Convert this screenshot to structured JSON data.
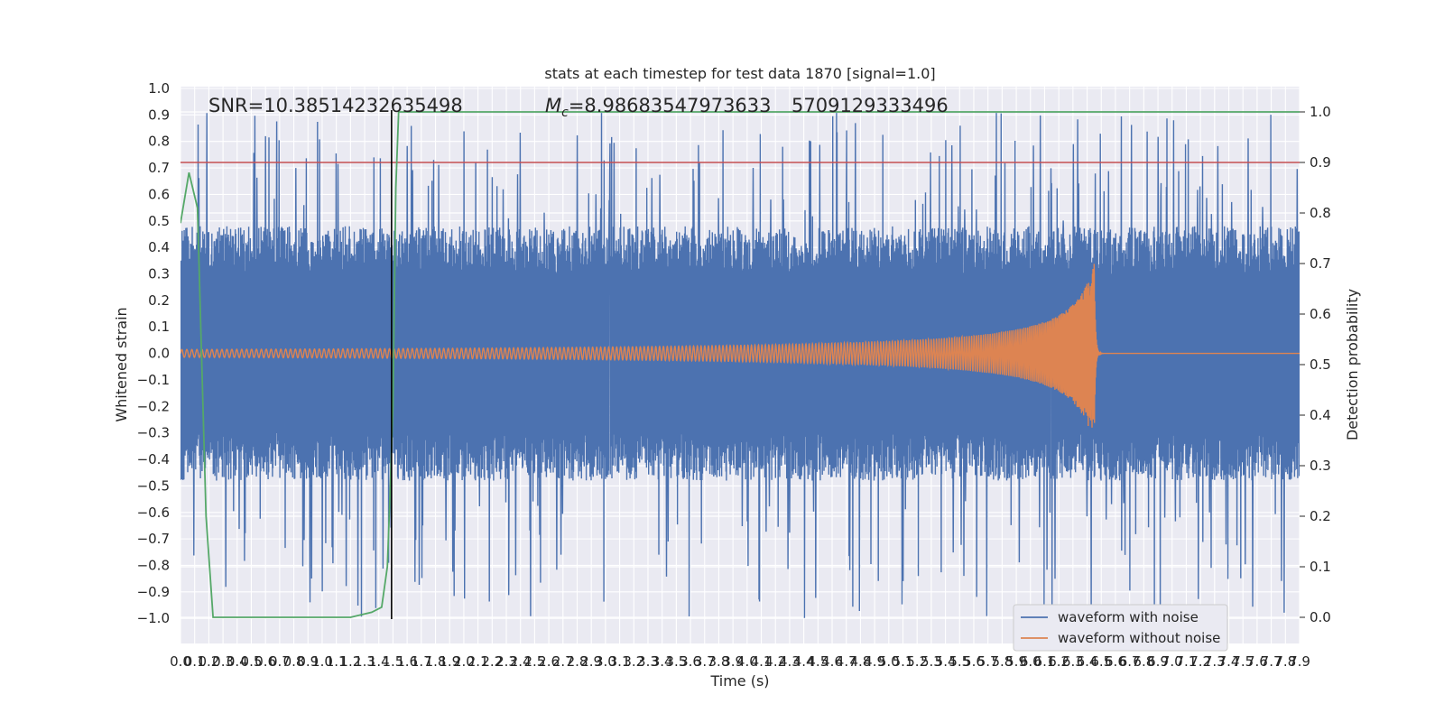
{
  "chart_data": {
    "type": "line",
    "title": "stats at each timestep for test data 1870 [signal=1.0]",
    "xlabel": "Time (s)",
    "ylabel_left": "Whitened strain",
    "ylabel_right": "Detection probability",
    "xlim": [
      0.0,
      7.9
    ],
    "ylim_left": [
      -1.09,
      1.0
    ],
    "ylim_right": [
      -0.05,
      1.045
    ],
    "x_ticks": [
      "0.0",
      "0.1",
      "0.2",
      "0.3",
      "0.4",
      "0.5",
      "0.6",
      "0.7",
      "0.8",
      "0.9",
      "1.0",
      "1.1",
      "1.2",
      "1.3",
      "1.4",
      "1.5",
      "1.6",
      "1.7",
      "1.8",
      "1.9",
      "2.0",
      "2.1",
      "2.2",
      "2.3",
      "2.4",
      "2.5",
      "2.6",
      "2.7",
      "2.8",
      "2.9",
      "3.0",
      "3.1",
      "3.2",
      "3.3",
      "3.4",
      "3.5",
      "3.6",
      "3.7",
      "3.8",
      "3.9",
      "4.0",
      "4.1",
      "4.2",
      "4.3",
      "4.4",
      "4.5",
      "4.6",
      "4.7",
      "4.8",
      "4.9",
      "5.0",
      "5.1",
      "5.2",
      "5.3",
      "5.4",
      "5.5",
      "5.6",
      "5.7",
      "5.8",
      "5.9",
      "6.0",
      "6.1",
      "6.2",
      "6.3",
      "6.4",
      "6.5",
      "6.6",
      "6.7",
      "6.8",
      "6.9",
      "7.0",
      "7.1",
      "7.2",
      "7.3",
      "7.4",
      "7.5",
      "7.6",
      "7.7",
      "7.8",
      "7.9"
    ],
    "y_ticks_left": [
      "1.0",
      "0.9",
      "0.8",
      "0.7",
      "0.6",
      "0.5",
      "0.4",
      "0.3",
      "0.2",
      "0.1",
      "0.0",
      "−0.1",
      "−0.2",
      "−0.3",
      "−0.4",
      "−0.5",
      "−0.6",
      "−0.7",
      "−0.8",
      "−0.9",
      "−1.0"
    ],
    "y_ticks_right": [
      "1.0",
      "0.9",
      "0.8",
      "0.7",
      "0.6",
      "0.5",
      "0.4",
      "0.3",
      "0.2",
      "0.1",
      "0.0"
    ],
    "annotations": {
      "snr": "SNR=10.38514232635498",
      "mc_symbol": "M",
      "mc_sub": "c",
      "mc_value": "=8.98683547973633",
      "mc_overlap": "5709129333496"
    },
    "series": [
      {
        "name": "waveform with noise",
        "color": "#4c72b0",
        "noise_envelope": [
          -0.48,
          0.48
        ],
        "peak_range": [
          -1.0,
          0.91
        ]
      },
      {
        "name": "waveform without noise",
        "color": "#dd8452",
        "chirp_start_amplitude": 0.015,
        "merger_time": 6.45,
        "merger_peak": [
          -0.28,
          0.37
        ]
      },
      {
        "name": "",
        "color": "#55a868",
        "axis": "right",
        "x": [
          0.0,
          0.06,
          0.12,
          0.18,
          0.23,
          0.29,
          0.6,
          0.9,
          1.2,
          1.35,
          1.42,
          1.46,
          1.48,
          1.5,
          1.52,
          1.54,
          2.0,
          4.0,
          6.0,
          7.9
        ],
        "y": [
          0.78,
          0.88,
          0.81,
          0.2,
          0.0,
          0.0,
          0.0,
          0.0,
          0.0,
          0.01,
          0.02,
          0.1,
          0.25,
          0.42,
          0.85,
          1.0,
          1.0,
          1.0,
          1.0,
          1.0
        ]
      }
    ],
    "reference_lines": [
      {
        "axis": "right",
        "y": 0.9,
        "color": "#c44e52"
      },
      {
        "axis": "vertical",
        "x": 1.49,
        "color": "#000000"
      }
    ],
    "legend": {
      "placement": "lower-right",
      "entries": [
        "waveform with noise",
        "waveform without noise"
      ]
    },
    "grid": true
  }
}
